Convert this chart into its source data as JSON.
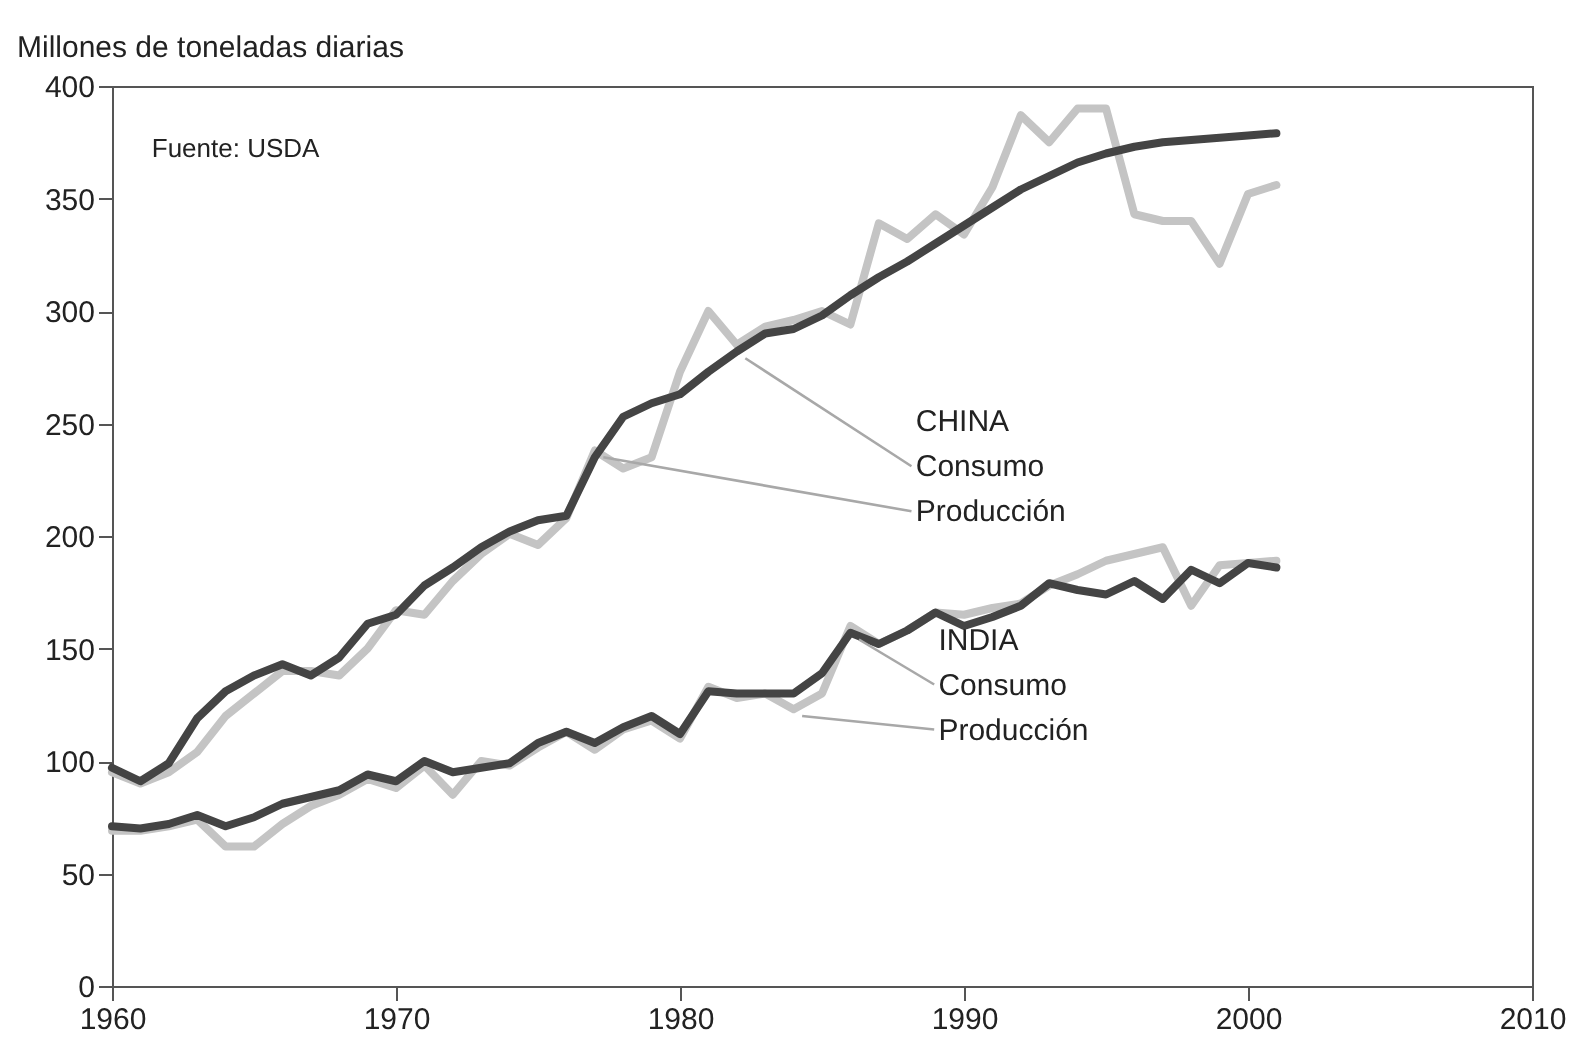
{
  "chart_data": {
    "type": "line",
    "ylabel": "Millones de toneladas diarias",
    "annotations": [
      "Fuente: USDA",
      "CHINA",
      {
        "text": "Consumo",
        "x": 1982,
        "y": 282
      },
      {
        "text": "Producción",
        "x": 1977,
        "y": 238
      },
      "INDIA",
      {
        "text": "Consumo",
        "x": 1986,
        "y": 157
      },
      {
        "text": "Producción",
        "x": 1984,
        "y": 123
      }
    ],
    "x": [
      1960,
      1961,
      1962,
      1963,
      1964,
      1965,
      1966,
      1967,
      1968,
      1969,
      1970,
      1971,
      1972,
      1973,
      1974,
      1975,
      1976,
      1977,
      1978,
      1979,
      1980,
      1981,
      1982,
      1983,
      1984,
      1985,
      1986,
      1987,
      1988,
      1989,
      1990,
      1991,
      1992,
      1993,
      1994,
      1995,
      1996,
      1997,
      1998,
      1999,
      2000,
      2001
    ],
    "series": [
      {
        "color": "#c4c4c4",
        "values": [
          95,
          90,
          95,
          104,
          120,
          130,
          140,
          140,
          138,
          150,
          167,
          165,
          180,
          192,
          201,
          196,
          208,
          238,
          230,
          235,
          273,
          300,
          285,
          293,
          296,
          300,
          294,
          339,
          332,
          343,
          334,
          355,
          387,
          375,
          390,
          390,
          343,
          340,
          340,
          321,
          352,
          356
        ]
      },
      {
        "color": "#444444",
        "values": [
          97,
          91,
          99,
          119,
          131,
          138,
          143,
          138,
          146,
          161,
          165,
          178,
          186,
          195,
          202,
          207,
          209,
          235,
          253,
          259,
          263,
          273,
          282,
          290,
          292,
          298,
          307,
          315,
          322,
          330,
          338,
          346,
          354,
          360,
          366,
          370,
          373,
          375,
          376,
          377,
          378,
          379
        ]
      },
      {
        "color": "#c4c4c4",
        "values": [
          69,
          69,
          71,
          74,
          62,
          62,
          72,
          80,
          85,
          92,
          88,
          98,
          85,
          100,
          98,
          106,
          113,
          105,
          114,
          118,
          110,
          133,
          128,
          130,
          123,
          130,
          160,
          152,
          158,
          166,
          165,
          168,
          170,
          178,
          183,
          189,
          192,
          195,
          169,
          187,
          188,
          189
        ]
      },
      {
        "color": "#444444",
        "values": [
          71,
          70,
          72,
          76,
          71,
          75,
          81,
          84,
          87,
          94,
          91,
          100,
          95,
          97,
          99,
          108,
          113,
          108,
          115,
          120,
          112,
          131,
          130,
          130,
          130,
          139,
          157,
          152,
          158,
          166,
          160,
          164,
          169,
          179,
          176,
          174,
          180,
          172,
          185,
          179,
          188,
          186
        ]
      }
    ],
    "xlim": [
      1960,
      2010
    ],
    "xticks": [
      1960,
      1970,
      1980,
      1990,
      2000,
      2010
    ],
    "ylim": [
      0,
      400
    ],
    "yticks": [
      0,
      50,
      100,
      150,
      200,
      250,
      300,
      350,
      400
    ],
    "grid": false
  }
}
